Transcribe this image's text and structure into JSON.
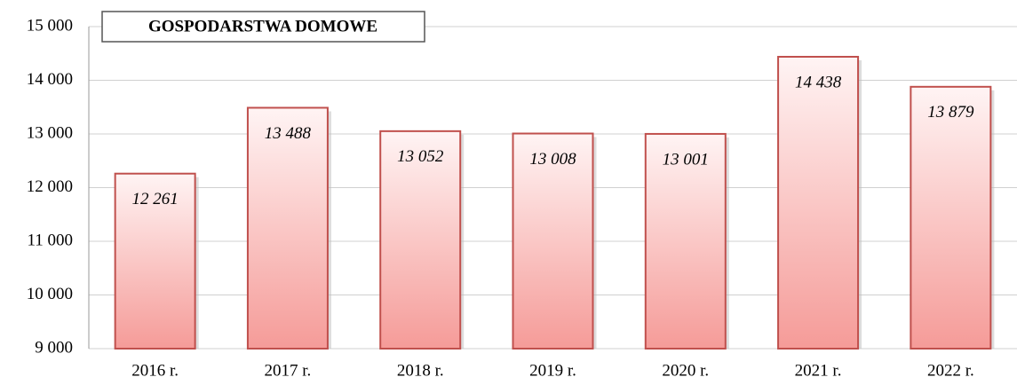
{
  "chart_data": {
    "type": "bar",
    "title": "GOSPODARSTWA DOMOWE",
    "categories": [
      "2016 r.",
      "2017 r.",
      "2018 r.",
      "2019 r.",
      "2020 r.",
      "2021 r.",
      "2022 r."
    ],
    "values": [
      12261,
      13488,
      13052,
      13008,
      13001,
      14438,
      13879
    ],
    "value_labels": [
      "12 261",
      "13 488",
      "13 052",
      "13 008",
      "13 001",
      "14 438",
      "13 879"
    ],
    "color": "#c0504d",
    "ylim": [
      9000,
      15000
    ],
    "yticks": [
      {
        "value": 9000,
        "label": "9 000"
      },
      {
        "value": 10000,
        "label": "10 000"
      },
      {
        "value": 11000,
        "label": "11 000"
      },
      {
        "value": 12000,
        "label": "12 000"
      },
      {
        "value": 13000,
        "label": "13 000"
      },
      {
        "value": 14000,
        "label": "14 000"
      },
      {
        "value": 15000,
        "label": "15 000"
      }
    ],
    "grid": true
  }
}
